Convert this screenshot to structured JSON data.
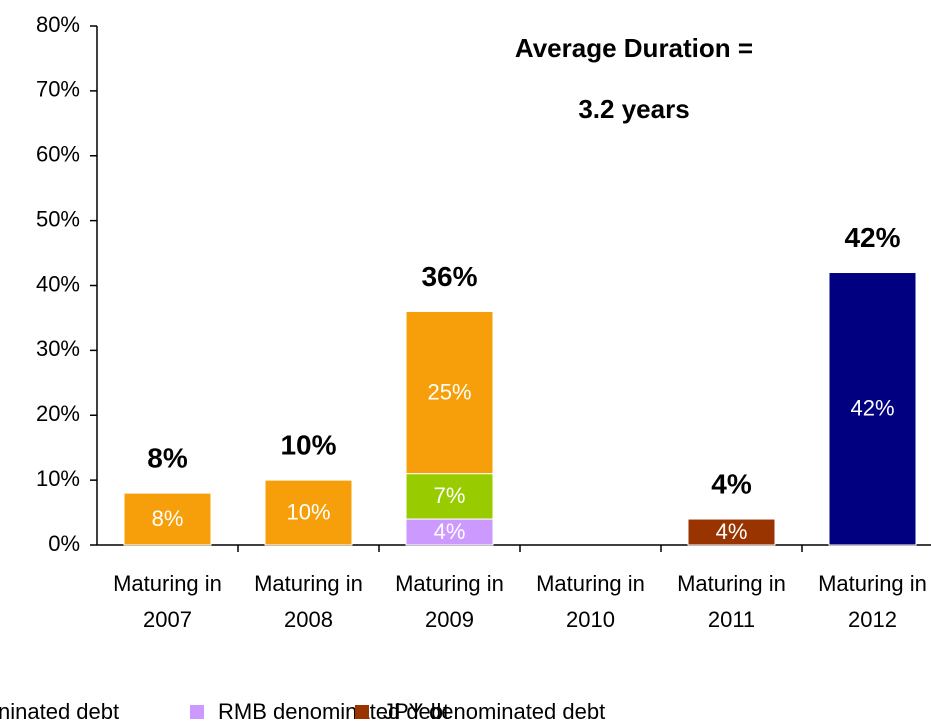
{
  "chart_data": {
    "type": "stacked-bar",
    "annotations": [
      "Average Duration =",
      "3.2 years"
    ],
    "categories": [
      "Maturing in 2007",
      "Maturing in 2008",
      "Maturing in 2009",
      "Maturing in 2010",
      "Maturing in 2011",
      "Maturing in 2012"
    ],
    "series": [
      {
        "name": "RMB denominated debt",
        "color": "#cc99ff",
        "values": [
          null,
          null,
          4,
          null,
          null,
          null
        ],
        "value_labels": [
          null,
          null,
          "4%",
          null,
          null,
          null
        ]
      },
      {
        "color": "#99cc00",
        "values": [
          null,
          null,
          7,
          null,
          null,
          null
        ],
        "value_labels": [
          null,
          null,
          "7%",
          null,
          null,
          null
        ]
      },
      {
        "name": "ninated debt",
        "color": "#f79f0a",
        "values": [
          8,
          10,
          25,
          null,
          null,
          null
        ],
        "value_labels": [
          "8%",
          "10%",
          "25%",
          null,
          null,
          null
        ]
      },
      {
        "name": "JPY denominated debt",
        "color": "#993300",
        "values": [
          null,
          null,
          null,
          null,
          4,
          null
        ],
        "value_labels": [
          null,
          null,
          null,
          null,
          "4%",
          null
        ]
      },
      {
        "color": "#000080",
        "values": [
          null,
          null,
          null,
          null,
          null,
          42
        ],
        "value_labels": [
          null,
          null,
          null,
          null,
          null,
          "42%"
        ]
      }
    ],
    "totals": [
      8,
      10,
      36,
      null,
      4,
      42
    ],
    "total_labels": [
      "8%",
      "10%",
      "36%",
      null,
      "4%",
      "42%"
    ],
    "ylim": [
      0,
      80
    ],
    "yticks": [
      {
        "value": 0,
        "label": "0%"
      },
      {
        "value": 10,
        "label": "10%"
      },
      {
        "value": 20,
        "label": "20%"
      },
      {
        "value": 30,
        "label": "30%"
      },
      {
        "value": 40,
        "label": "40%"
      },
      {
        "value": 50,
        "label": "50%"
      },
      {
        "value": 60,
        "label": "60%"
      },
      {
        "value": 70,
        "label": "70%"
      },
      {
        "value": 80,
        "label": "80%"
      }
    ]
  }
}
